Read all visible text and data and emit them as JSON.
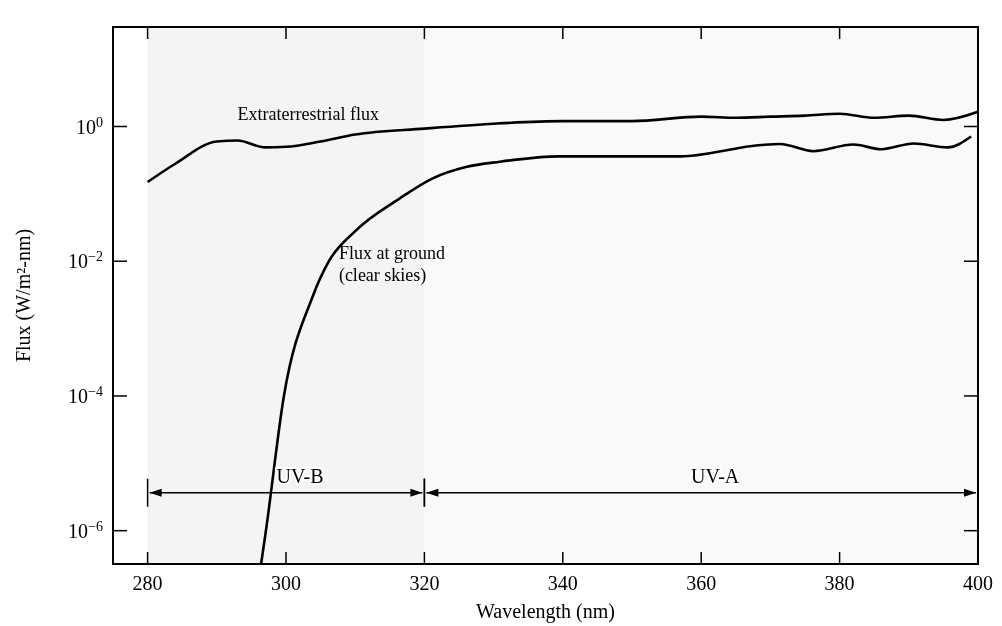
{
  "chart_data": {
    "type": "line",
    "xlabel": "Wavelength (nm)",
    "ylabel": "Flux (W/m²-nm)",
    "log": "y",
    "xlim": [
      275,
      400
    ],
    "xticks": [
      280,
      300,
      320,
      340,
      360,
      380,
      400
    ],
    "ylim": [
      3.2e-07,
      30
    ],
    "yticks": [
      {
        "value": 1,
        "label": "10$^{0}$"
      },
      {
        "value": 0.01,
        "label": "10$^{−2}$"
      },
      {
        "value": 0.0001,
        "label": "10$^{−4}$"
      },
      {
        "value": 1e-06,
        "label": "10$^{−6}$"
      }
    ],
    "series": [
      {
        "name": "Extraterrestrial flux",
        "color": "#000000",
        "x": [
          280,
          284,
          290,
          293,
          297,
          300,
          305,
          310,
          320,
          330,
          340,
          350,
          360,
          365,
          370,
          375,
          380,
          385,
          390,
          395,
          400
        ],
        "values": [
          0.15,
          0.28,
          0.6,
          0.62,
          0.49,
          0.5,
          0.6,
          0.76,
          0.93,
          1.1,
          1.2,
          1.2,
          1.4,
          1.35,
          1.4,
          1.45,
          1.55,
          1.35,
          1.45,
          1.25,
          1.65
        ]
      },
      {
        "name": "Flux at ground\n(clear skies)",
        "color": "#000000",
        "x": [
          296.4,
          297.1,
          299.7,
          303.8,
          306.2,
          310,
          316.4,
          321.2,
          326,
          330.9,
          339.6,
          357,
          368.6,
          371.4,
          376.2,
          382,
          386,
          390.7,
          395.6,
          399
        ],
        "values": [
          3.2e-07,
          1e-06,
          0.0001,
          0.0029,
          0.01,
          0.028,
          0.085,
          0.17,
          0.25,
          0.3,
          0.36,
          0.36,
          0.53,
          0.55,
          0.43,
          0.54,
          0.46,
          0.56,
          0.49,
          0.71
        ]
      }
    ],
    "bands": [
      {
        "axis": "x",
        "from": 280,
        "to": 320,
        "label": "UV-B",
        "color": "#f4f4f4"
      },
      {
        "axis": "x",
        "from": 320,
        "to": 400,
        "label": "UV-A",
        "color": "#f9f9f9"
      }
    ]
  }
}
